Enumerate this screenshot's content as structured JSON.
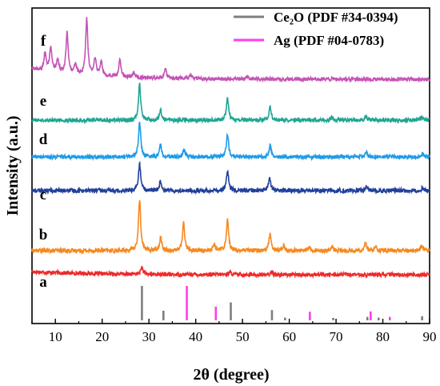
{
  "chart_data": {
    "type": "line",
    "title": "",
    "xlabel": "2θ (degree)",
    "ylabel": "Intensity (a.u.)",
    "xlim": [
      5,
      90
    ],
    "xticks": [
      10,
      20,
      30,
      40,
      50,
      60,
      70,
      80,
      90
    ],
    "yticks_shown": false,
    "grid": false,
    "legend_placement": "top-right",
    "series": [
      {
        "name": "a",
        "color": "#ee2a2a",
        "peaks": [
          [
            28.5,
            0.4
          ],
          [
            47.3,
            0.15
          ],
          [
            56.3,
            0.12
          ]
        ],
        "noise": 0.11,
        "slope": 0.3
      },
      {
        "name": "b",
        "color": "#f5891f",
        "peaks": [
          [
            28.0,
            2.9
          ],
          [
            32.5,
            0.8
          ],
          [
            37.4,
            1.6
          ],
          [
            43.9,
            0.35
          ],
          [
            46.8,
            1.8
          ],
          [
            55.9,
            1.0
          ],
          [
            58.8,
            0.3
          ],
          [
            64.2,
            0.25
          ],
          [
            69.1,
            0.2
          ],
          [
            76.3,
            0.45
          ],
          [
            78.5,
            0.2
          ],
          [
            88.3,
            0.3
          ]
        ],
        "noise": 0.12,
        "slope": 0.0
      },
      {
        "name": "c",
        "color": "#213f9b",
        "peaks": [
          [
            28.0,
            1.5
          ],
          [
            32.5,
            0.55
          ],
          [
            46.8,
            1.1
          ],
          [
            55.8,
            0.75
          ],
          [
            76.5,
            0.25
          ],
          [
            88.5,
            0.2
          ]
        ],
        "noise": 0.12,
        "slope": 0.0
      },
      {
        "name": "d",
        "color": "#1f9be8",
        "peaks": [
          [
            28.0,
            2.0
          ],
          [
            32.5,
            0.7
          ],
          [
            37.5,
            0.4
          ],
          [
            46.8,
            1.3
          ],
          [
            55.9,
            0.7
          ],
          [
            76.5,
            0.3
          ],
          [
            88.5,
            0.2
          ]
        ],
        "noise": 0.11,
        "slope": 0.0
      },
      {
        "name": "e",
        "color": "#1fa593",
        "peaks": [
          [
            28.0,
            2.1
          ],
          [
            32.5,
            0.55
          ],
          [
            46.8,
            1.2
          ],
          [
            55.9,
            0.75
          ],
          [
            69.0,
            0.15
          ],
          [
            76.4,
            0.2
          ],
          [
            88.3,
            0.2
          ]
        ],
        "noise": 0.11,
        "slope": 0.0
      },
      {
        "name": "f",
        "color": "#c454b7",
        "peaks": [
          [
            7.8,
            1.0
          ],
          [
            9.0,
            1.4
          ],
          [
            10.5,
            0.7
          ],
          [
            12.5,
            2.3
          ],
          [
            14.3,
            0.6
          ],
          [
            16.7,
            3.2
          ],
          [
            18.5,
            1.0
          ],
          [
            19.8,
            0.8
          ],
          [
            23.8,
            1.0
          ],
          [
            26.8,
            0.3
          ],
          [
            33.5,
            0.55
          ],
          [
            39.0,
            0.25
          ],
          [
            51.0,
            0.15
          ]
        ],
        "noise": 0.1,
        "slope": 1.0
      }
    ],
    "reference_patterns": [
      {
        "name": "Ce₂O (PDF #34-0394)",
        "color": "#7f7f7f",
        "lines": [
          [
            28.5,
            100
          ],
          [
            33.1,
            28
          ],
          [
            47.5,
            52
          ],
          [
            56.3,
            30
          ],
          [
            59.1,
            8
          ],
          [
            69.4,
            7
          ],
          [
            76.7,
            10
          ],
          [
            79.1,
            8
          ],
          [
            88.4,
            12
          ]
        ]
      },
      {
        "name": "Ag (PDF #04-0783)",
        "color": "#ff3ee8",
        "lines": [
          [
            38.1,
            100
          ],
          [
            44.3,
            40
          ],
          [
            64.4,
            25
          ],
          [
            77.4,
            26
          ],
          [
            81.5,
            10
          ]
        ]
      }
    ]
  }
}
